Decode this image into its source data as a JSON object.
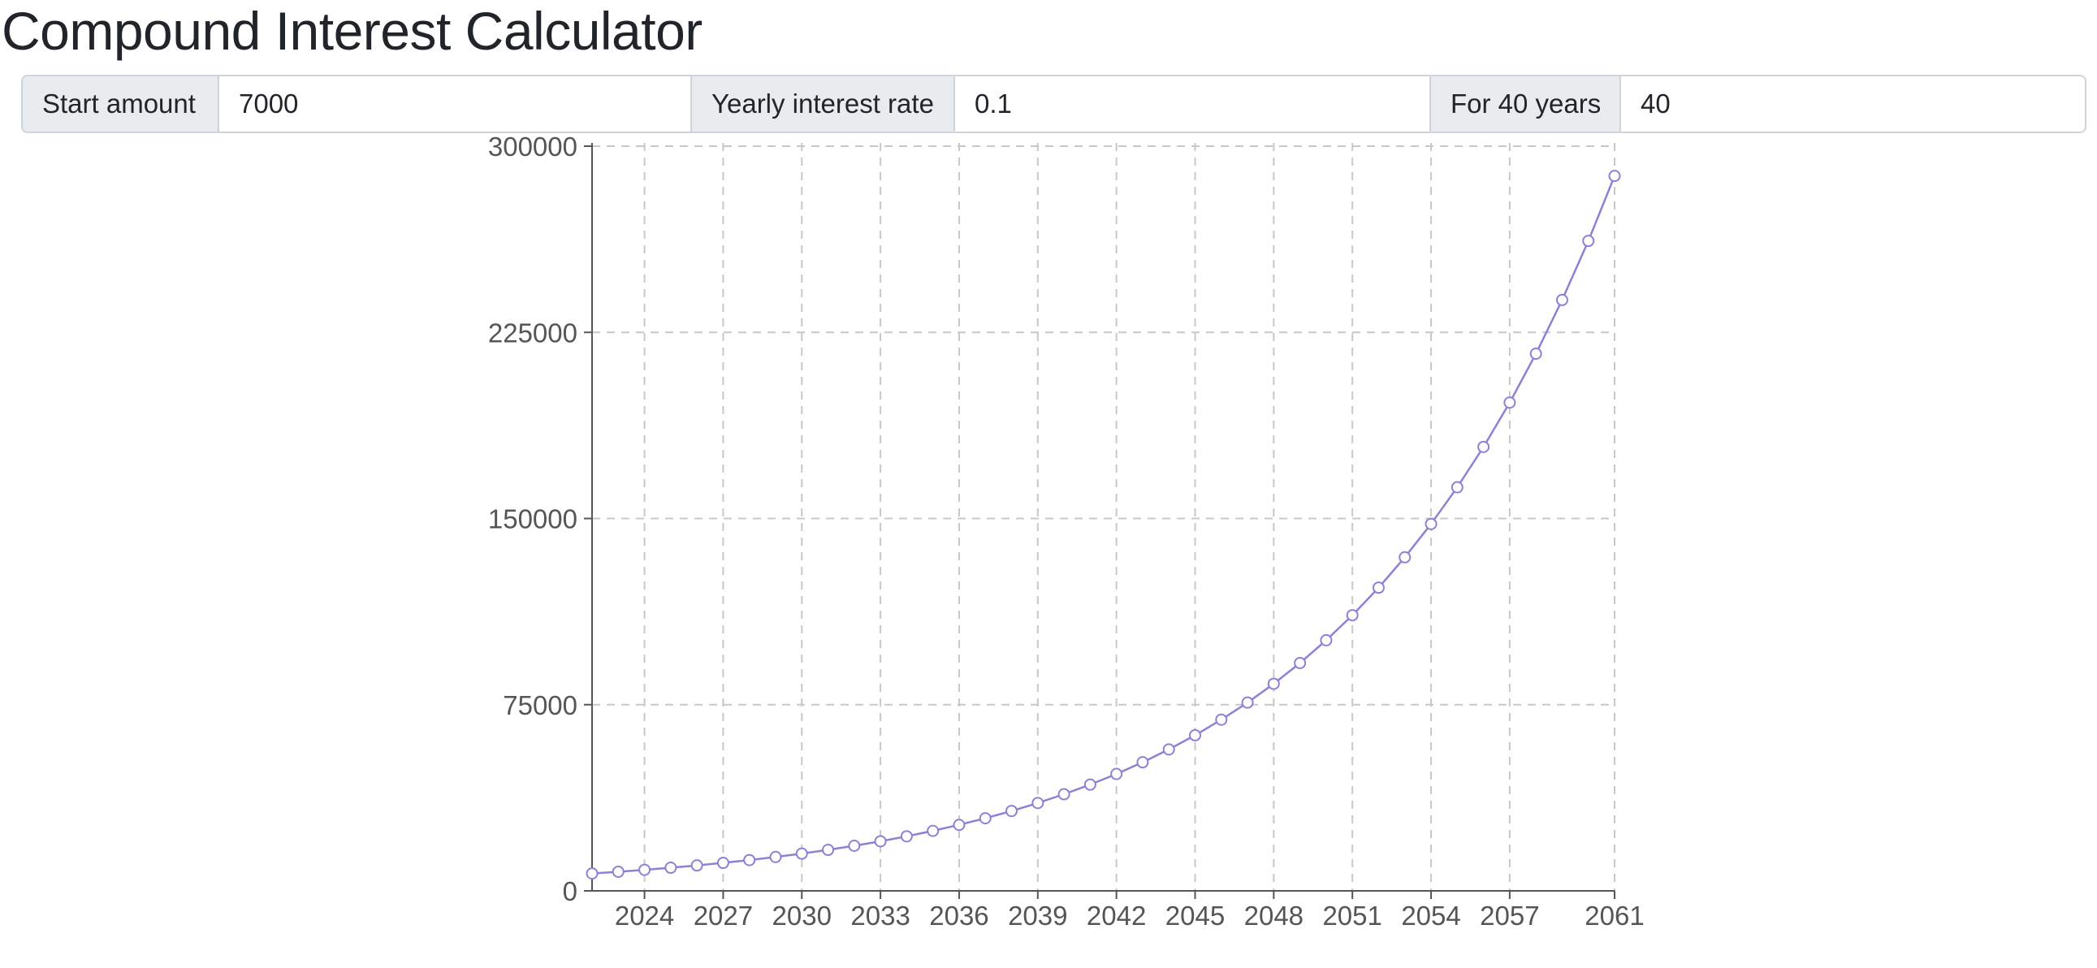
{
  "page": {
    "title": "Compound Interest Calculator"
  },
  "form": {
    "start_amount": {
      "label": "Start amount",
      "value": "7000"
    },
    "interest_rate": {
      "label": "Yearly interest rate",
      "value": "0.1"
    },
    "years": {
      "label": "For 40 years",
      "value": "40"
    }
  },
  "colors": {
    "line": "#8b82d6",
    "grid": "#c8c8c8",
    "axis": "#555555",
    "input_label_bg": "#e9ecef",
    "input_border": "#ced4da"
  },
  "chart_data": {
    "type": "line",
    "title": "",
    "xlabel": "",
    "ylabel": "",
    "grid": true,
    "grid_style": "dashed",
    "marker": "hollow-circle",
    "xlim": [
      2022,
      2061
    ],
    "ylim": [
      0,
      300000
    ],
    "x_ticks": [
      2024,
      2027,
      2030,
      2033,
      2036,
      2039,
      2042,
      2045,
      2048,
      2051,
      2054,
      2057,
      2061
    ],
    "y_ticks": [
      0,
      75000,
      150000,
      225000,
      300000
    ],
    "x": [
      2022,
      2023,
      2024,
      2025,
      2026,
      2027,
      2028,
      2029,
      2030,
      2031,
      2032,
      2033,
      2034,
      2035,
      2036,
      2037,
      2038,
      2039,
      2040,
      2041,
      2042,
      2043,
      2044,
      2045,
      2046,
      2047,
      2048,
      2049,
      2050,
      2051,
      2052,
      2053,
      2054,
      2055,
      2056,
      2057,
      2058,
      2059,
      2060,
      2061
    ],
    "series": [
      {
        "values": [
          7000,
          7700,
          8470,
          9317,
          10249,
          11274,
          12401,
          13641,
          15005,
          16506,
          18156,
          19972,
          21969,
          24166,
          26583,
          29241,
          32165,
          35382,
          38920,
          42812,
          47093,
          51803,
          56983,
          62681,
          68949,
          75844,
          83429,
          91771,
          100949,
          111043,
          122148,
          134363,
          147799,
          162579,
          178837,
          196720,
          216392,
          238032,
          261835,
          288018
        ]
      }
    ]
  }
}
